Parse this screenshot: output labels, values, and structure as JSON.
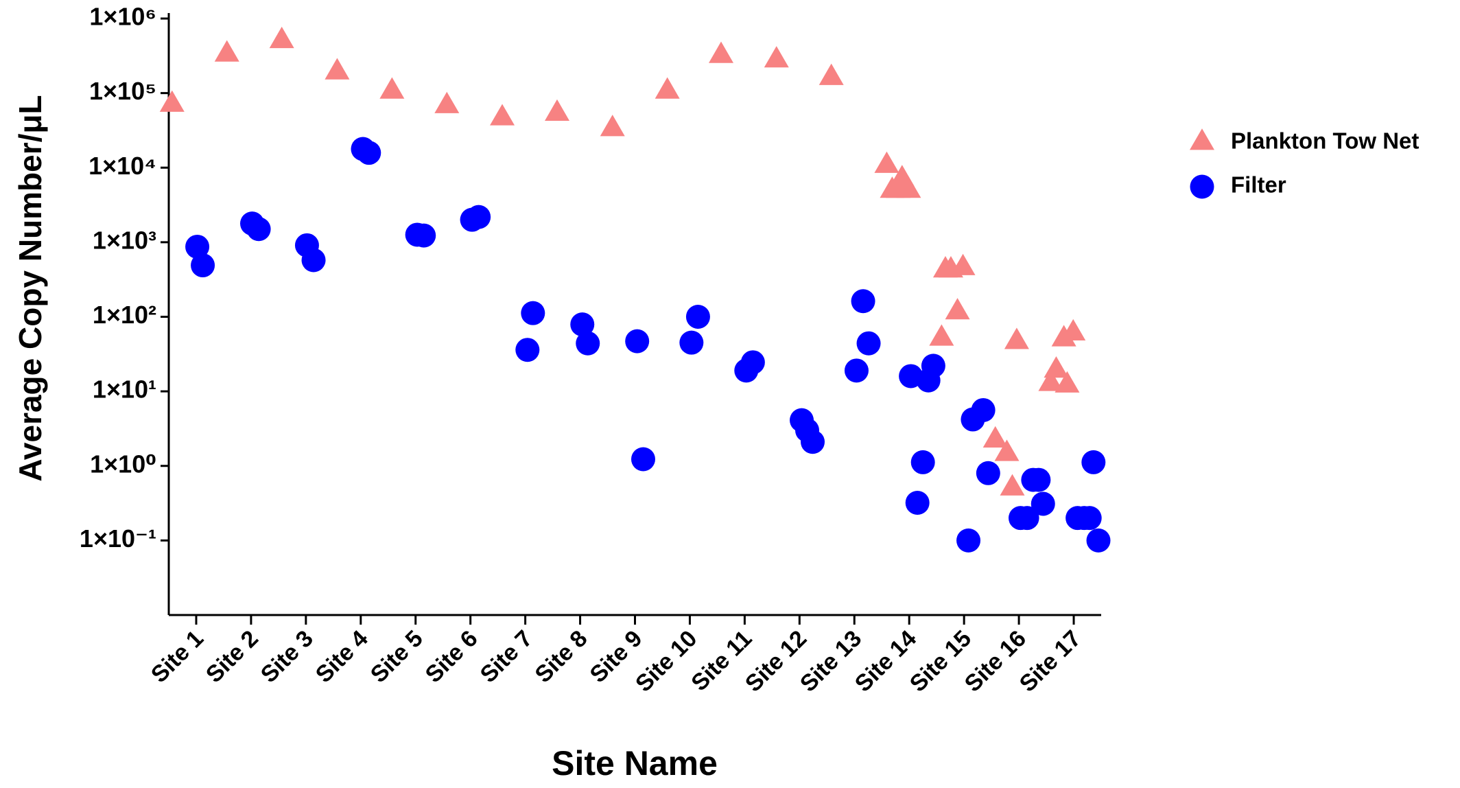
{
  "chart_data": {
    "type": "scatter",
    "x_label": "Site Name",
    "y_label": "Average Copy Number/μL",
    "log_y": true,
    "grid": false,
    "legend": "right",
    "xlim": [
      0.5,
      17.5
    ],
    "xticks": [
      {
        "value": 1,
        "label": "Site 1"
      },
      {
        "value": 2,
        "label": "Site 2"
      },
      {
        "value": 3,
        "label": "Site 3"
      },
      {
        "value": 4,
        "label": "Site 4"
      },
      {
        "value": 5,
        "label": "Site 5"
      },
      {
        "value": 6,
        "label": "Site 6"
      },
      {
        "value": 7,
        "label": "Site 7"
      },
      {
        "value": 8,
        "label": "Site 8"
      },
      {
        "value": 9,
        "label": "Site 9"
      },
      {
        "value": 10,
        "label": "Site 10"
      },
      {
        "value": 11,
        "label": "Site 11"
      },
      {
        "value": 12,
        "label": "Site 12"
      },
      {
        "value": 13,
        "label": "Site 13"
      },
      {
        "value": 14,
        "label": "Site 14"
      },
      {
        "value": 15,
        "label": "Site 15"
      },
      {
        "value": 16,
        "label": "Site 16"
      },
      {
        "value": 17,
        "label": "Site 17"
      }
    ],
    "ylim": [
      0.01,
      1000000
    ],
    "yticks": [
      {
        "value": 1000000,
        "label": "1×10⁶"
      },
      {
        "value": 100000,
        "label": "1×10⁵"
      },
      {
        "value": 10000,
        "label": "1×10⁴"
      },
      {
        "value": 1000,
        "label": "1×10³"
      },
      {
        "value": 100,
        "label": "1×10²"
      },
      {
        "value": 10,
        "label": "1×10¹"
      },
      {
        "value": 1,
        "label": "1×10⁰"
      },
      {
        "value": 0.1,
        "label": "1×10⁻¹"
      }
    ],
    "series": [
      {
        "name": "Plankton Tow Net",
        "color": "#f78282",
        "marker": "triangle",
        "x": [
          0.56,
          1.56,
          2.56,
          3.57,
          4.57,
          5.57,
          6.58,
          7.58,
          8.59,
          9.59,
          10.57,
          11.58,
          12.58,
          13.59,
          13.69,
          13.8,
          13.87,
          13.99,
          14.66,
          14.76,
          14.98,
          14.59,
          14.88,
          15.57,
          15.78,
          15.88,
          15.96,
          16.58,
          16.68,
          16.88,
          16.82,
          16.99
        ],
        "values": [
          70000,
          330000,
          500000,
          190000,
          105000,
          67000,
          46000,
          53000,
          33000,
          105000,
          316000,
          275000,
          160000,
          10600,
          4900,
          4900,
          7000,
          4900,
          420,
          420,
          450,
          51,
          115,
          2.2,
          1.45,
          0.5,
          46,
          12.6,
          19,
          12,
          50,
          60
        ]
      },
      {
        "name": "Filter",
        "color": "#0000ff",
        "marker": "circle",
        "x": [
          1.02,
          1.12,
          2.02,
          2.14,
          3.02,
          3.14,
          4.04,
          4.15,
          5.03,
          5.15,
          6.03,
          6.15,
          7.04,
          7.14,
          8.04,
          8.14,
          9.04,
          9.15,
          10.03,
          10.15,
          11.03,
          11.15,
          12.04,
          12.14,
          12.24,
          13.04,
          13.16,
          13.26,
          14.03,
          14.15,
          14.25,
          14.35,
          14.44,
          15.08,
          15.16,
          15.35,
          15.44,
          16.03,
          16.15,
          16.26,
          16.36,
          16.44,
          17.07,
          17.19,
          17.29,
          17.36,
          17.45
        ],
        "values": [
          870,
          490,
          1780,
          1500,
          910,
          575,
          17800,
          15800,
          1260,
          1230,
          2000,
          2180,
          36,
          112,
          79,
          44,
          47,
          1.23,
          45,
          100,
          19,
          24.5,
          4.1,
          3,
          2.1,
          19,
          162,
          44,
          16,
          0.32,
          1.12,
          14,
          22,
          0.1,
          4.2,
          5.6,
          0.8,
          0.2,
          0.2,
          0.65,
          0.65,
          0.31,
          0.2,
          0.2,
          0.2,
          1.12,
          0.1
        ]
      }
    ]
  }
}
